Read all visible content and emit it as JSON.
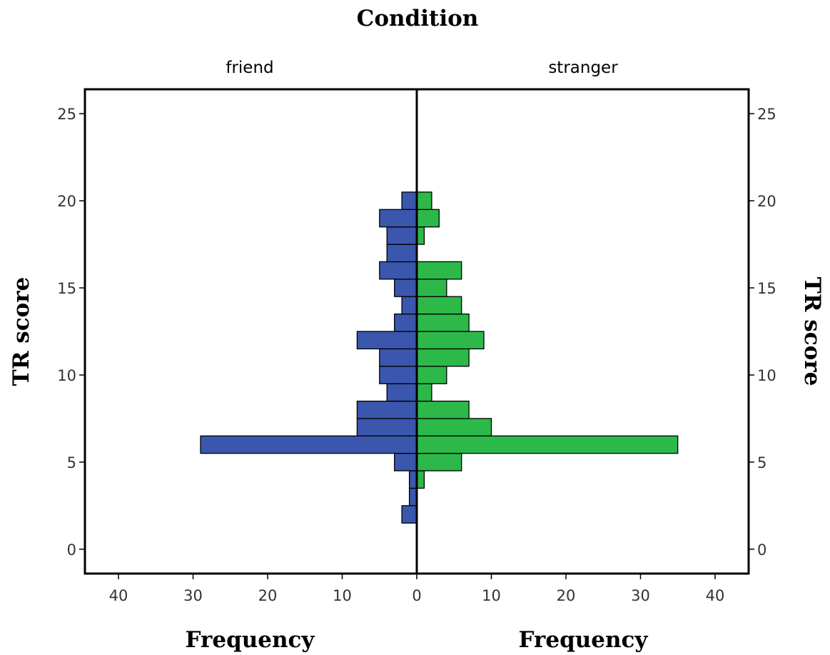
{
  "chart_data": {
    "type": "bar",
    "orientation": "horizontal-population-pyramid",
    "title": "Condition",
    "panels": [
      {
        "name": "friend",
        "color": "#3b56ad",
        "bins": [
          {
            "y": 2,
            "count": 2
          },
          {
            "y": 3,
            "count": 1
          },
          {
            "y": 4,
            "count": 1
          },
          {
            "y": 5,
            "count": 3
          },
          {
            "y": 6,
            "count": 29
          },
          {
            "y": 7,
            "count": 8
          },
          {
            "y": 8,
            "count": 8
          },
          {
            "y": 9,
            "count": 4
          },
          {
            "y": 10,
            "count": 5
          },
          {
            "y": 11,
            "count": 5
          },
          {
            "y": 12,
            "count": 8
          },
          {
            "y": 13,
            "count": 3
          },
          {
            "y": 14,
            "count": 2
          },
          {
            "y": 15,
            "count": 3
          },
          {
            "y": 16,
            "count": 5
          },
          {
            "y": 17,
            "count": 4
          },
          {
            "y": 18,
            "count": 4
          },
          {
            "y": 19,
            "count": 5
          },
          {
            "y": 20,
            "count": 2
          }
        ]
      },
      {
        "name": "stranger",
        "color": "#2db84a",
        "bins": [
          {
            "y": 4,
            "count": 1
          },
          {
            "y": 5,
            "count": 6
          },
          {
            "y": 6,
            "count": 35
          },
          {
            "y": 7,
            "count": 10
          },
          {
            "y": 8,
            "count": 7
          },
          {
            "y": 9,
            "count": 2
          },
          {
            "y": 10,
            "count": 4
          },
          {
            "y": 11,
            "count": 7
          },
          {
            "y": 12,
            "count": 9
          },
          {
            "y": 13,
            "count": 7
          },
          {
            "y": 14,
            "count": 6
          },
          {
            "y": 15,
            "count": 4
          },
          {
            "y": 16,
            "count": 6
          },
          {
            "y": 18,
            "count": 1
          },
          {
            "y": 19,
            "count": 3
          },
          {
            "y": 20,
            "count": 2
          }
        ]
      }
    ],
    "ylabel": "TR score",
    "xlabel": "Frequency",
    "ylim": [
      -1.4,
      26.4
    ],
    "xlim": [
      0,
      44.5
    ],
    "yticks": [
      0,
      5,
      10,
      15,
      20,
      25
    ],
    "xticks": [
      0,
      10,
      20,
      30,
      40
    ],
    "bin_width": 1,
    "grid": false
  }
}
